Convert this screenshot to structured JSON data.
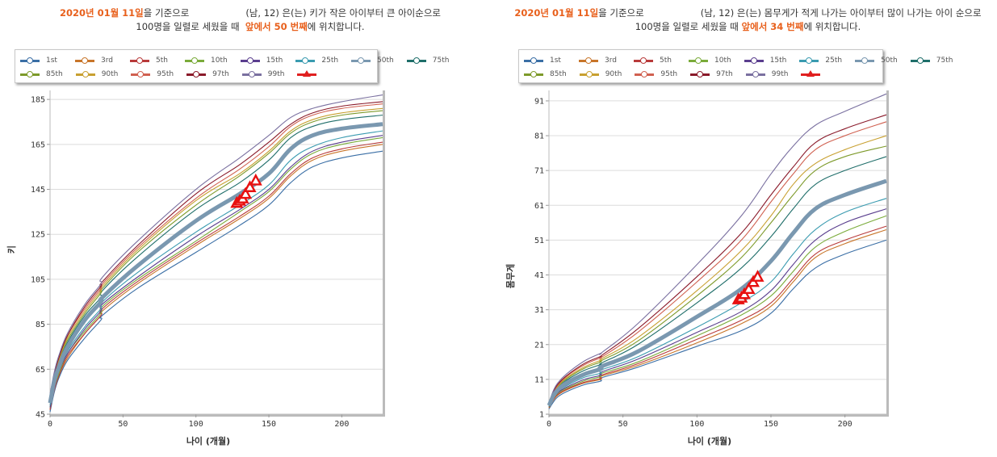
{
  "panels": [
    {
      "id": "height",
      "caption": {
        "date": "2020년 01월 11일",
        "line1_a": "을 기준으로",
        "line1_b": "(남, 12) 은(는) 키가 작은 아이부터 큰 아이순으로",
        "line2_a": "100명을 일렬로 세웠을 때",
        "rank": "앞에서 50 번째",
        "line2_b": "에 위치합니다."
      }
    },
    {
      "id": "weight",
      "caption": {
        "date": "2020년 01월 11일",
        "line1_a": "을 기준으로",
        "line1_b": "(남, 12) 은(는) 몸무게가 적게 나가는 아이부터 많이 나가는 아이 순으로",
        "line2_a": "100명을 일렬로 세웠을 때",
        "rank": "앞에서 34 번째",
        "line2_b": "에 위치합니다."
      }
    }
  ],
  "legend": [
    {
      "label": "1st",
      "color": "#3a6ea5"
    },
    {
      "label": "3rd",
      "color": "#c8752a"
    },
    {
      "label": "5th",
      "color": "#b83a3a"
    },
    {
      "label": "10th",
      "color": "#7aab3a"
    },
    {
      "label": "15th",
      "color": "#5a3e8e"
    },
    {
      "label": "25th",
      "color": "#3a9bb0"
    },
    {
      "label": "50th",
      "color": "#7a98b0"
    },
    {
      "label": "75th",
      "color": "#1f6e6a"
    },
    {
      "label": "85th",
      "color": "#7d9a2a"
    },
    {
      "label": "90th",
      "color": "#c8a030"
    },
    {
      "label": "95th",
      "color": "#d06050"
    },
    {
      "label": "97th",
      "color": "#8a1a2a"
    },
    {
      "label": "99th",
      "color": "#7a70a0"
    },
    {
      "label": "",
      "color": "#e02020",
      "marker": "triangle"
    }
  ],
  "chart_data": [
    {
      "type": "line",
      "title": "",
      "xlabel": "나이 (개월)",
      "ylabel": "키",
      "xlim": [
        0,
        228
      ],
      "ylim": [
        45,
        189
      ],
      "xticks": [
        0,
        50,
        100,
        150,
        200
      ],
      "yticks": [
        45,
        65,
        85,
        105,
        125,
        145,
        165,
        185
      ],
      "grid": true,
      "legend_position": "top",
      "x": [
        0,
        3,
        6,
        12,
        24,
        35,
        36,
        60,
        100,
        130,
        150,
        165,
        180,
        200,
        228
      ],
      "series": [
        {
          "name": "1st",
          "values": [
            46,
            55,
            61,
            69,
            79,
            87,
            89,
            101,
            117,
            129,
            138,
            148,
            155,
            159,
            162
          ]
        },
        {
          "name": "3rd",
          "values": [
            47,
            56,
            62,
            70,
            81,
            89,
            91,
            103,
            120,
            132,
            141,
            151,
            158,
            162,
            165
          ]
        },
        {
          "name": "5th",
          "values": [
            47,
            56,
            62,
            71,
            81,
            89,
            92,
            104,
            121,
            133,
            142,
            152,
            159,
            163,
            166
          ]
        },
        {
          "name": "10th",
          "values": [
            48,
            57,
            63,
            72,
            82,
            90,
            93,
            105,
            122,
            135,
            144,
            154,
            161,
            165,
            168
          ]
        },
        {
          "name": "15th",
          "values": [
            48,
            57,
            64,
            72,
            83,
            91,
            94,
            106,
            124,
            136,
            145,
            155,
            162,
            166,
            169
          ]
        },
        {
          "name": "25th",
          "values": [
            49,
            58,
            64,
            73,
            84,
            92,
            95,
            108,
            126,
            138,
            147,
            158,
            164,
            168,
            171
          ]
        },
        {
          "name": "50th",
          "values": [
            50,
            60,
            66,
            75,
            87,
            95,
            97,
            111,
            131,
            143,
            152,
            163,
            169,
            172,
            174
          ]
        },
        {
          "name": "75th",
          "values": [
            51,
            61,
            68,
            77,
            89,
            97,
            100,
            115,
            136,
            148,
            158,
            168,
            173,
            176,
            178
          ]
        },
        {
          "name": "85th",
          "values": [
            52,
            62,
            69,
            78,
            90,
            99,
            101,
            117,
            138,
            151,
            161,
            170,
            175,
            178,
            180
          ]
        },
        {
          "name": "90th",
          "values": [
            52,
            62,
            69,
            79,
            91,
            100,
            102,
            118,
            140,
            152,
            162,
            171,
            176,
            179,
            181
          ]
        },
        {
          "name": "95th",
          "values": [
            53,
            63,
            70,
            80,
            92,
            101,
            103,
            119,
            141,
            154,
            164,
            173,
            178,
            181,
            183
          ]
        },
        {
          "name": "97th",
          "values": [
            53,
            63,
            70,
            80,
            93,
            102,
            104,
            120,
            143,
            156,
            166,
            174,
            179,
            182,
            184
          ]
        },
        {
          "name": "99th",
          "values": [
            54,
            64,
            71,
            81,
            94,
            103,
            106,
            122,
            145,
            159,
            169,
            177,
            181,
            184,
            187
          ]
        }
      ],
      "markers": {
        "name": "measurements",
        "x": [
          128,
          130,
          132,
          134,
          137,
          141
        ],
        "y": [
          139,
          140,
          141,
          143,
          146,
          149
        ]
      }
    },
    {
      "type": "line",
      "title": "",
      "xlabel": "나이 (개월)",
      "ylabel": "몸무게",
      "xlim": [
        0,
        228
      ],
      "ylim": [
        1,
        94
      ],
      "xticks": [
        0,
        50,
        100,
        150,
        200
      ],
      "yticks": [
        1,
        11,
        21,
        31,
        41,
        51,
        61,
        71,
        81,
        91
      ],
      "grid": true,
      "legend_position": "top",
      "x": [
        0,
        3,
        6,
        12,
        24,
        35,
        36,
        60,
        100,
        130,
        150,
        165,
        180,
        200,
        228
      ],
      "series": [
        {
          "name": "1st",
          "values": [
            2.5,
            4.5,
            6,
            7.5,
            9.5,
            10.5,
            11.5,
            14.5,
            20.5,
            25,
            30,
            37,
            43,
            47,
            51
          ]
        },
        {
          "name": "3rd",
          "values": [
            2.8,
            5,
            6.5,
            8,
            10,
            11,
            12,
            15,
            21.5,
            27,
            32,
            39,
            46,
            50,
            54
          ]
        },
        {
          "name": "5th",
          "values": [
            3,
            5.2,
            6.7,
            8.2,
            10.2,
            11.3,
            12.3,
            15.5,
            22.5,
            28,
            33,
            40,
            47,
            51,
            55
          ]
        },
        {
          "name": "10th",
          "values": [
            3.1,
            5.4,
            7,
            8.5,
            10.6,
            11.8,
            12.8,
            16,
            23.5,
            29.5,
            35,
            42,
            49,
            53.5,
            58
          ]
        },
        {
          "name": "15th",
          "values": [
            3.2,
            5.6,
            7.2,
            8.8,
            11,
            12.2,
            13.2,
            16.8,
            24.5,
            30.5,
            36.5,
            44,
            51,
            56,
            60
          ]
        },
        {
          "name": "25th",
          "values": [
            3.3,
            5.8,
            7.5,
            9.2,
            11.6,
            12.8,
            13.8,
            17.5,
            26,
            33,
            39,
            47,
            54,
            59,
            63
          ]
        },
        {
          "name": "50th",
          "values": [
            3.5,
            6.3,
            8,
            10,
            12.5,
            14,
            14.8,
            19,
            29,
            37,
            45,
            53,
            60,
            64,
            68
          ]
        },
        {
          "name": "75th",
          "values": [
            3.7,
            6.8,
            8.6,
            10.8,
            13.6,
            15.3,
            15.8,
            21,
            33,
            43,
            52,
            60,
            67,
            71,
            75
          ]
        },
        {
          "name": "85th",
          "values": [
            3.8,
            7,
            8.9,
            11.2,
            14.2,
            16,
            16.5,
            22,
            35,
            46,
            56,
            64,
            71,
            75,
            78
          ]
        },
        {
          "name": "90th",
          "values": [
            3.9,
            7.2,
            9.1,
            11.5,
            14.6,
            16.5,
            17,
            23,
            36.5,
            48,
            58,
            67,
            73,
            77,
            81
          ]
        },
        {
          "name": "95th",
          "values": [
            4,
            7.4,
            9.4,
            11.9,
            15.2,
            17.2,
            17.5,
            24.5,
            39,
            51,
            62,
            70,
            77,
            81,
            85
          ]
        },
        {
          "name": "97th",
          "values": [
            4.1,
            7.5,
            9.6,
            12.1,
            15.6,
            17.6,
            18,
            25.5,
            40.5,
            53,
            64,
            72,
            79,
            83,
            87
          ]
        },
        {
          "name": "99th",
          "values": [
            4.3,
            7.8,
            10,
            12.6,
            16.3,
            18.5,
            18.8,
            27,
            44,
            58,
            70,
            78,
            84,
            88,
            93
          ]
        }
      ],
      "markers": {
        "name": "measurements",
        "x": [
          128,
          130,
          132,
          135,
          138,
          141
        ],
        "y": [
          34,
          34.5,
          35.5,
          37,
          39,
          40.5
        ]
      }
    }
  ]
}
